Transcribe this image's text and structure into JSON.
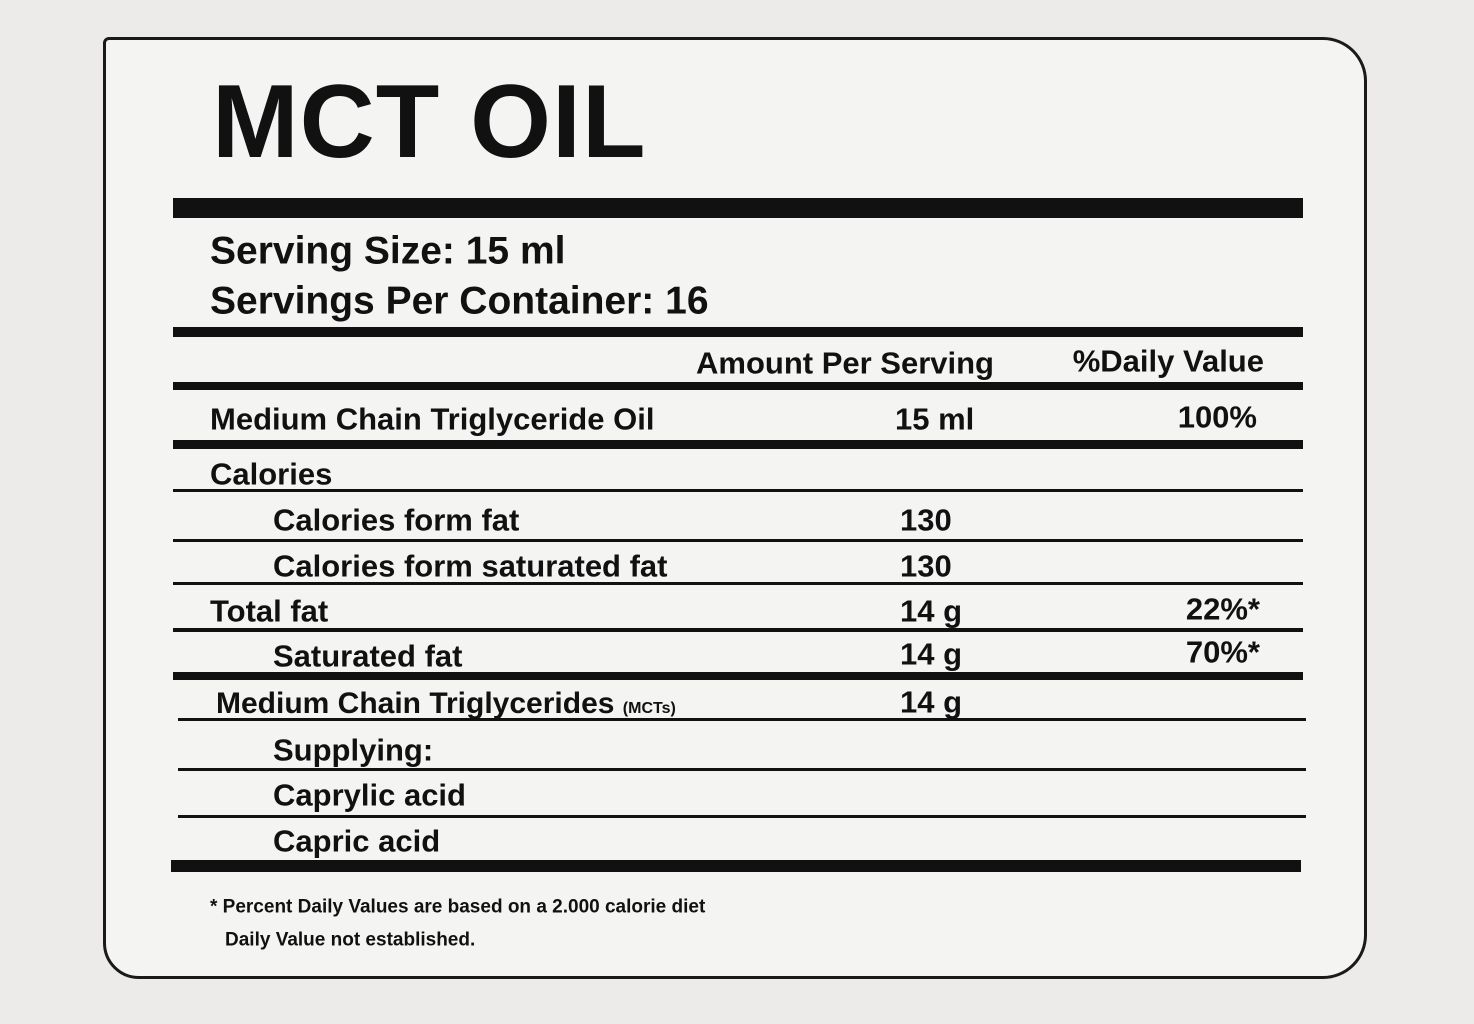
{
  "label": {
    "title": "MCT OIL",
    "serving_size": "Serving Size: 15 ml",
    "servings_per_container": "Servings Per Container: 16",
    "columns": {
      "amount": "Amount Per Serving",
      "daily_value": "%Daily Value"
    },
    "rows": [
      {
        "name": "Medium Chain Triglyceride Oil",
        "amount": "15 ml",
        "daily_value": "100%"
      },
      {
        "name": "Calories",
        "items": [
          {
            "name": "Calories form fat",
            "amount": "130"
          },
          {
            "name": "Calories form saturated fat",
            "amount": "130"
          }
        ]
      },
      {
        "name": "Total fat",
        "amount": "14 g",
        "daily_value": "22%*",
        "items": [
          {
            "name": "Saturated fat",
            "amount": "14 g",
            "daily_value": "70%*"
          }
        ]
      },
      {
        "name": "Medium Chain Triglycerides",
        "note": "(MCTs)",
        "amount": "14 g",
        "items": [
          {
            "name": "Supplying:"
          },
          {
            "name": "Caprylic acid"
          },
          {
            "name": "Capric acid"
          }
        ]
      }
    ],
    "footnotes": [
      "* Percent Daily Values are based on a 2.000 calorie diet",
      "Daily Value not established."
    ]
  }
}
